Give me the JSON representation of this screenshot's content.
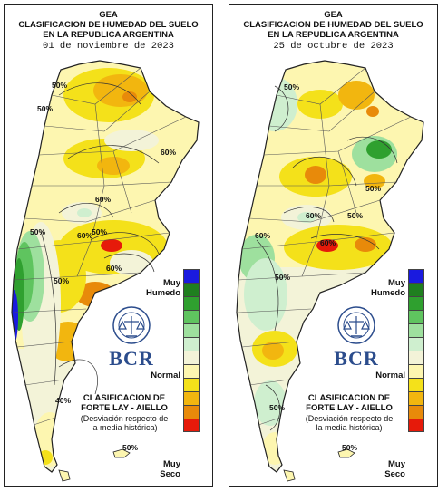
{
  "panels": [
    {
      "title1": "GEA",
      "title2": "CLASIFICACION DE HUMEDAD DEL SUELO",
      "title3": "EN LA REPUBLICA ARGENTINA",
      "date": "01 de noviembre de 2023",
      "iso_labels": [
        "50%",
        "50%",
        "60%",
        "60%",
        "50%",
        "60%",
        "60%",
        "50%",
        "40%",
        "50%",
        "50%"
      ]
    },
    {
      "title1": "GEA",
      "title2": "CLASIFICACION DE HUMEDAD DEL SUELO",
      "title3": "EN LA REPUBLICA ARGENTINA",
      "date": "25 de octubre de 2023",
      "iso_labels": [
        "50%",
        "60%",
        "50%",
        "60%",
        "50%",
        "60%",
        "50%",
        "50%",
        "50%"
      ]
    }
  ],
  "legend": {
    "wet_label_1": "Muy",
    "wet_label_2": "Humedo",
    "normal_label": "Normal",
    "dry_label_1": "Muy",
    "dry_label_2": "Seco",
    "classification_title_1": "CLASIFICACION DE",
    "classification_title_2": "FORTE LAY - AIELLO",
    "classification_note_1": "(Desviación respecto de",
    "classification_note_2": "la media histórica)",
    "colors": [
      "#1a1adf",
      "#1f7f1f",
      "#2fa02f",
      "#5fc45f",
      "#9ee09e",
      "#cfefcf",
      "#f3f3d8",
      "#fdf6b0",
      "#f4e11a",
      "#f2b60f",
      "#e88a0a",
      "#e61a0a"
    ]
  },
  "logo": {
    "brand": "BCR",
    "seal_text": "BOLSA DE COMERCIO DE ROSARIO"
  }
}
